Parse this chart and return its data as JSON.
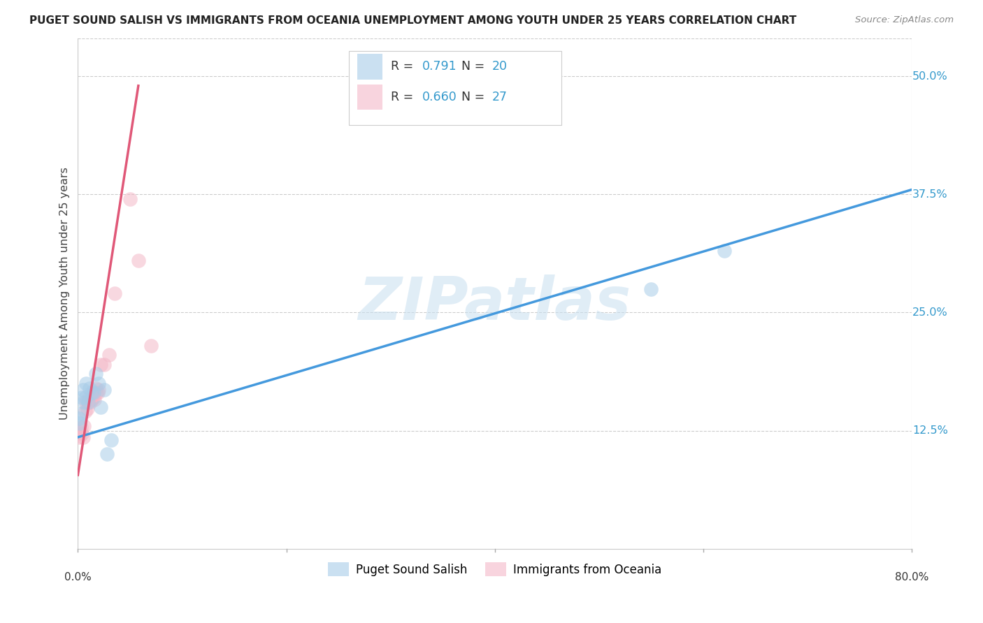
{
  "title": "PUGET SOUND SALISH VS IMMIGRANTS FROM OCEANIA UNEMPLOYMENT AMONG YOUTH UNDER 25 YEARS CORRELATION CHART",
  "source": "Source: ZipAtlas.com",
  "ylabel": "Unemployment Among Youth under 25 years",
  "xlim": [
    0.0,
    0.8
  ],
  "ylim": [
    0.0,
    0.54
  ],
  "ytick_positions": [
    0.125,
    0.25,
    0.375,
    0.5
  ],
  "ytick_labels": [
    "12.5%",
    "25.0%",
    "37.5%",
    "50.0%"
  ],
  "watermark": "ZIPatlas",
  "legend_R1": "0.791",
  "legend_N1": "20",
  "legend_R2": "0.660",
  "legend_N2": "27",
  "series1_color": "#a8cce8",
  "series2_color": "#f4b8c8",
  "series1_line_color": "#4499dd",
  "series2_line_color": "#e05878",
  "background_color": "#ffffff",
  "grid_color": "#cccccc",
  "blue_points_x": [
    0.001,
    0.002,
    0.003,
    0.004,
    0.005,
    0.006,
    0.007,
    0.008,
    0.01,
    0.011,
    0.013,
    0.015,
    0.017,
    0.02,
    0.022,
    0.025,
    0.028,
    0.032,
    0.55,
    0.62
  ],
  "blue_points_y": [
    0.138,
    0.133,
    0.143,
    0.16,
    0.168,
    0.155,
    0.16,
    0.175,
    0.155,
    0.17,
    0.165,
    0.165,
    0.185,
    0.175,
    0.15,
    0.168,
    0.1,
    0.115,
    0.275,
    0.315
  ],
  "pink_points_x": [
    0.001,
    0.002,
    0.003,
    0.004,
    0.005,
    0.006,
    0.007,
    0.008,
    0.009,
    0.01,
    0.011,
    0.012,
    0.013,
    0.014,
    0.015,
    0.016,
    0.017,
    0.018,
    0.019,
    0.02,
    0.022,
    0.025,
    0.03,
    0.035,
    0.05,
    0.058,
    0.07
  ],
  "pink_points_y": [
    0.118,
    0.123,
    0.128,
    0.122,
    0.118,
    0.13,
    0.145,
    0.155,
    0.148,
    0.155,
    0.16,
    0.155,
    0.158,
    0.162,
    0.16,
    0.158,
    0.17,
    0.165,
    0.165,
    0.168,
    0.195,
    0.195,
    0.205,
    0.27,
    0.37,
    0.305,
    0.215
  ],
  "blue_line_x0": 0.0,
  "blue_line_y0": 0.118,
  "blue_line_x1": 0.8,
  "blue_line_y1": 0.38,
  "pink_line_x0": 0.0,
  "pink_line_y0": 0.078,
  "pink_line_x1": 0.058,
  "pink_line_y1": 0.49
}
